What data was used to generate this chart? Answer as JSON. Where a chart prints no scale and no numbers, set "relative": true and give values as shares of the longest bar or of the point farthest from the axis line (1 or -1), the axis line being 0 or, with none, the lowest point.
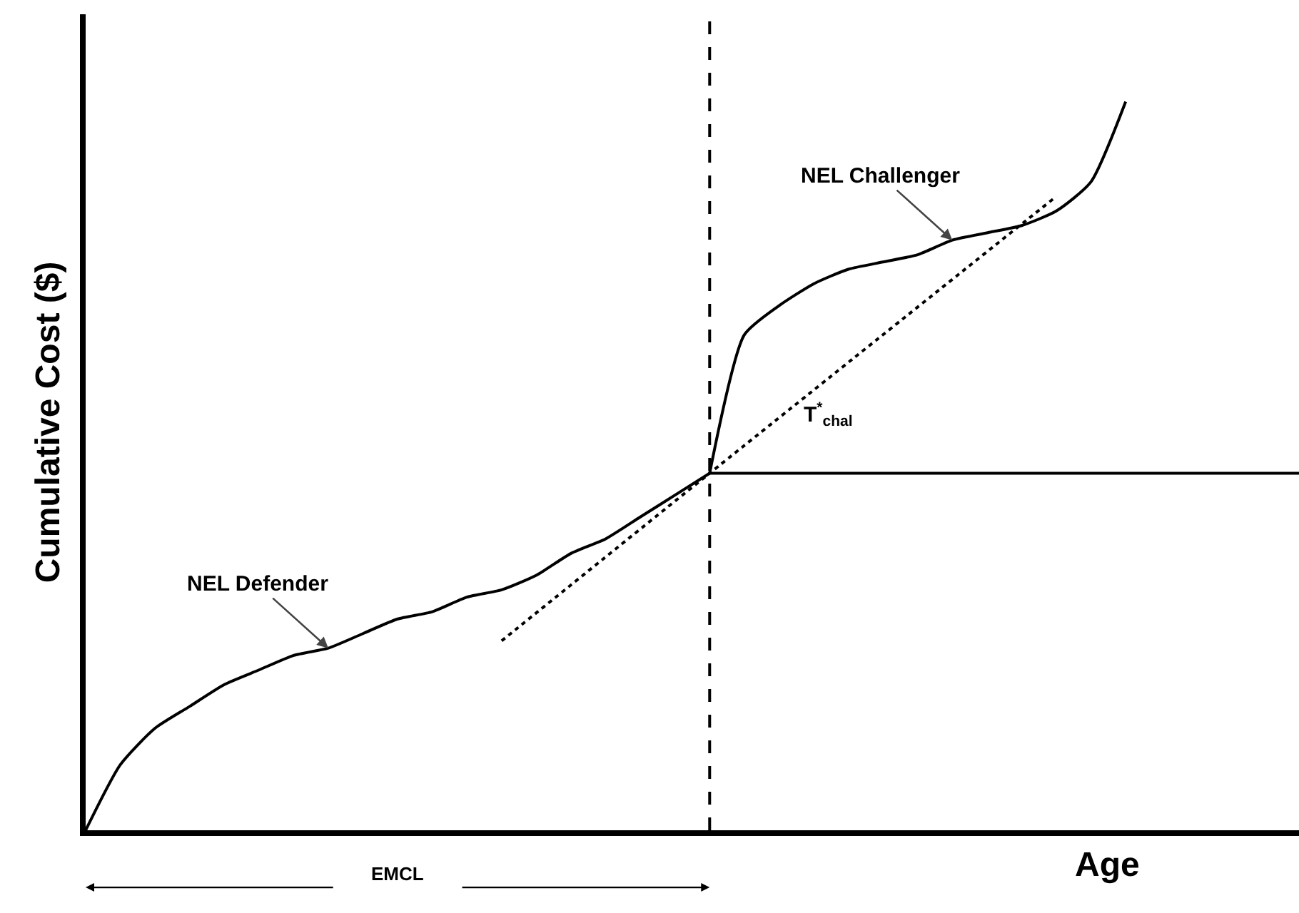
{
  "chart_data": {
    "type": "line",
    "relative": true,
    "xlabel": "Age",
    "ylabel": "Cumulative Cost ($)",
    "categories": [
      null,
      null,
      null,
      null,
      null,
      null,
      null,
      null,
      null,
      null,
      null,
      null,
      null,
      null,
      null,
      null,
      null,
      null,
      null,
      null,
      null,
      null,
      null,
      null,
      null,
      null,
      null,
      null,
      null,
      null,
      null,
      null,
      null,
      null,
      null,
      null
    ],
    "series": [
      {
        "name": "NEL Defender",
        "color": "#000000",
        "values": [
          0,
          0.09,
          0.14,
          0.17,
          0.2,
          0.22,
          0.24,
          0.25,
          0.27,
          0.29,
          0.3,
          0.32,
          0.33,
          0.35,
          0.38,
          0.4,
          0.43,
          0.46,
          0.49,
          null,
          null,
          null,
          null,
          null,
          null,
          null,
          null,
          null,
          null,
          null,
          null,
          null,
          null,
          null,
          null,
          null
        ]
      },
      {
        "name": "NEL Challenger",
        "color": "#000000",
        "values": [
          null,
          null,
          null,
          null,
          null,
          null,
          null,
          null,
          null,
          null,
          null,
          null,
          null,
          null,
          null,
          null,
          null,
          null,
          0.49,
          0.68,
          0.72,
          0.75,
          0.77,
          0.78,
          0.79,
          0.81,
          0.82,
          0.83,
          0.85,
          0.89,
          1,
          null,
          null,
          null,
          null,
          null
        ]
      },
      {
        "color": "#000000",
        "line_style": "dotted",
        "values": [
          null,
          null,
          null,
          null,
          null,
          null,
          null,
          null,
          null,
          null,
          null,
          null,
          0.26,
          null,
          null,
          null,
          null,
          null,
          0.49,
          null,
          null,
          null,
          null,
          null,
          null,
          null,
          null,
          null,
          0.87,
          null,
          null,
          null,
          null,
          null,
          null,
          null
        ]
      },
      {
        "color": "#000000",
        "values": [
          null,
          null,
          null,
          null,
          null,
          null,
          null,
          null,
          null,
          null,
          null,
          null,
          null,
          null,
          null,
          null,
          null,
          null,
          0.49,
          0.49,
          0.49,
          0.49,
          0.49,
          0.49,
          0.49,
          0.49,
          0.49,
          0.49,
          0.49,
          0.49,
          0.49,
          0.49,
          0.49,
          0.49,
          0.49,
          0.49
        ]
      }
    ],
    "annotations": [
      "T$^{*}$$_{chal}$",
      "EMCL"
    ],
    "legend": false
  }
}
